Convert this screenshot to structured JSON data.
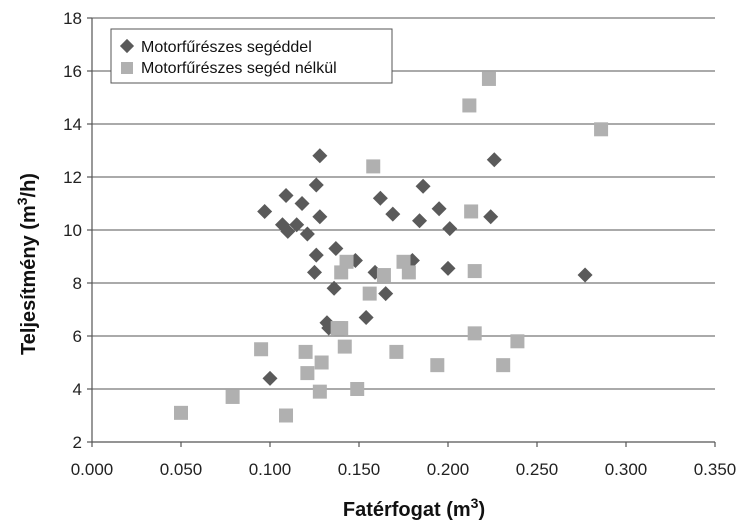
{
  "chart_data": {
    "type": "scatter",
    "title": "",
    "xlabel": "Fatérfogat (m",
    "xlabel_sup": "3",
    "xlabel_end": ")",
    "ylabel": "Teljesítmény (m",
    "ylabel_sup": "3",
    "ylabel_end": "/h)",
    "xlim": [
      0.0,
      0.35
    ],
    "ylim": [
      2,
      18
    ],
    "x_ticks": [
      "0.000",
      "0.050",
      "0.100",
      "0.150",
      "0.200",
      "0.250",
      "0.300",
      "0.350"
    ],
    "y_ticks": [
      "2",
      "4",
      "6",
      "8",
      "10",
      "12",
      "14",
      "16",
      "18"
    ],
    "grid": "horizontal",
    "legend": "top-left",
    "series": [
      {
        "name": "Motorfűrészes segéddel",
        "marker": "diamond",
        "color": "#5a5a5a",
        "points": [
          [
            0.1,
            4.4
          ],
          [
            0.097,
            10.7
          ],
          [
            0.107,
            10.2
          ],
          [
            0.109,
            11.3
          ],
          [
            0.11,
            9.95
          ],
          [
            0.115,
            10.2
          ],
          [
            0.118,
            11.0
          ],
          [
            0.121,
            9.85
          ],
          [
            0.125,
            8.4
          ],
          [
            0.126,
            9.05
          ],
          [
            0.126,
            11.7
          ],
          [
            0.128,
            12.8
          ],
          [
            0.128,
            10.5
          ],
          [
            0.132,
            6.5
          ],
          [
            0.133,
            6.3
          ],
          [
            0.136,
            7.8
          ],
          [
            0.137,
            9.3
          ],
          [
            0.148,
            8.85
          ],
          [
            0.154,
            6.7
          ],
          [
            0.159,
            8.4
          ],
          [
            0.162,
            11.2
          ],
          [
            0.165,
            7.6
          ],
          [
            0.169,
            10.6
          ],
          [
            0.18,
            8.85
          ],
          [
            0.184,
            10.35
          ],
          [
            0.186,
            11.65
          ],
          [
            0.195,
            10.8
          ],
          [
            0.2,
            8.55
          ],
          [
            0.201,
            10.05
          ],
          [
            0.224,
            10.5
          ],
          [
            0.226,
            12.65
          ],
          [
            0.277,
            8.3
          ]
        ]
      },
      {
        "name": "Motorfűrészes segéd nélkül",
        "marker": "square",
        "color": "#b0b0b0",
        "points": [
          [
            0.05,
            3.1
          ],
          [
            0.079,
            3.7
          ],
          [
            0.095,
            5.5
          ],
          [
            0.109,
            3.0
          ],
          [
            0.12,
            5.4
          ],
          [
            0.121,
            4.6
          ],
          [
            0.128,
            3.9
          ],
          [
            0.129,
            5.0
          ],
          [
            0.138,
            6.3
          ],
          [
            0.14,
            6.3
          ],
          [
            0.14,
            8.4
          ],
          [
            0.142,
            5.6
          ],
          [
            0.143,
            8.8
          ],
          [
            0.149,
            4.0
          ],
          [
            0.156,
            7.6
          ],
          [
            0.158,
            12.4
          ],
          [
            0.164,
            8.3
          ],
          [
            0.171,
            5.4
          ],
          [
            0.175,
            8.8
          ],
          [
            0.178,
            8.4
          ],
          [
            0.194,
            4.9
          ],
          [
            0.212,
            14.7
          ],
          [
            0.213,
            10.7
          ],
          [
            0.215,
            8.45
          ],
          [
            0.215,
            6.1
          ],
          [
            0.223,
            15.7
          ],
          [
            0.231,
            4.9
          ],
          [
            0.239,
            5.8
          ],
          [
            0.286,
            13.8
          ]
        ]
      }
    ]
  }
}
